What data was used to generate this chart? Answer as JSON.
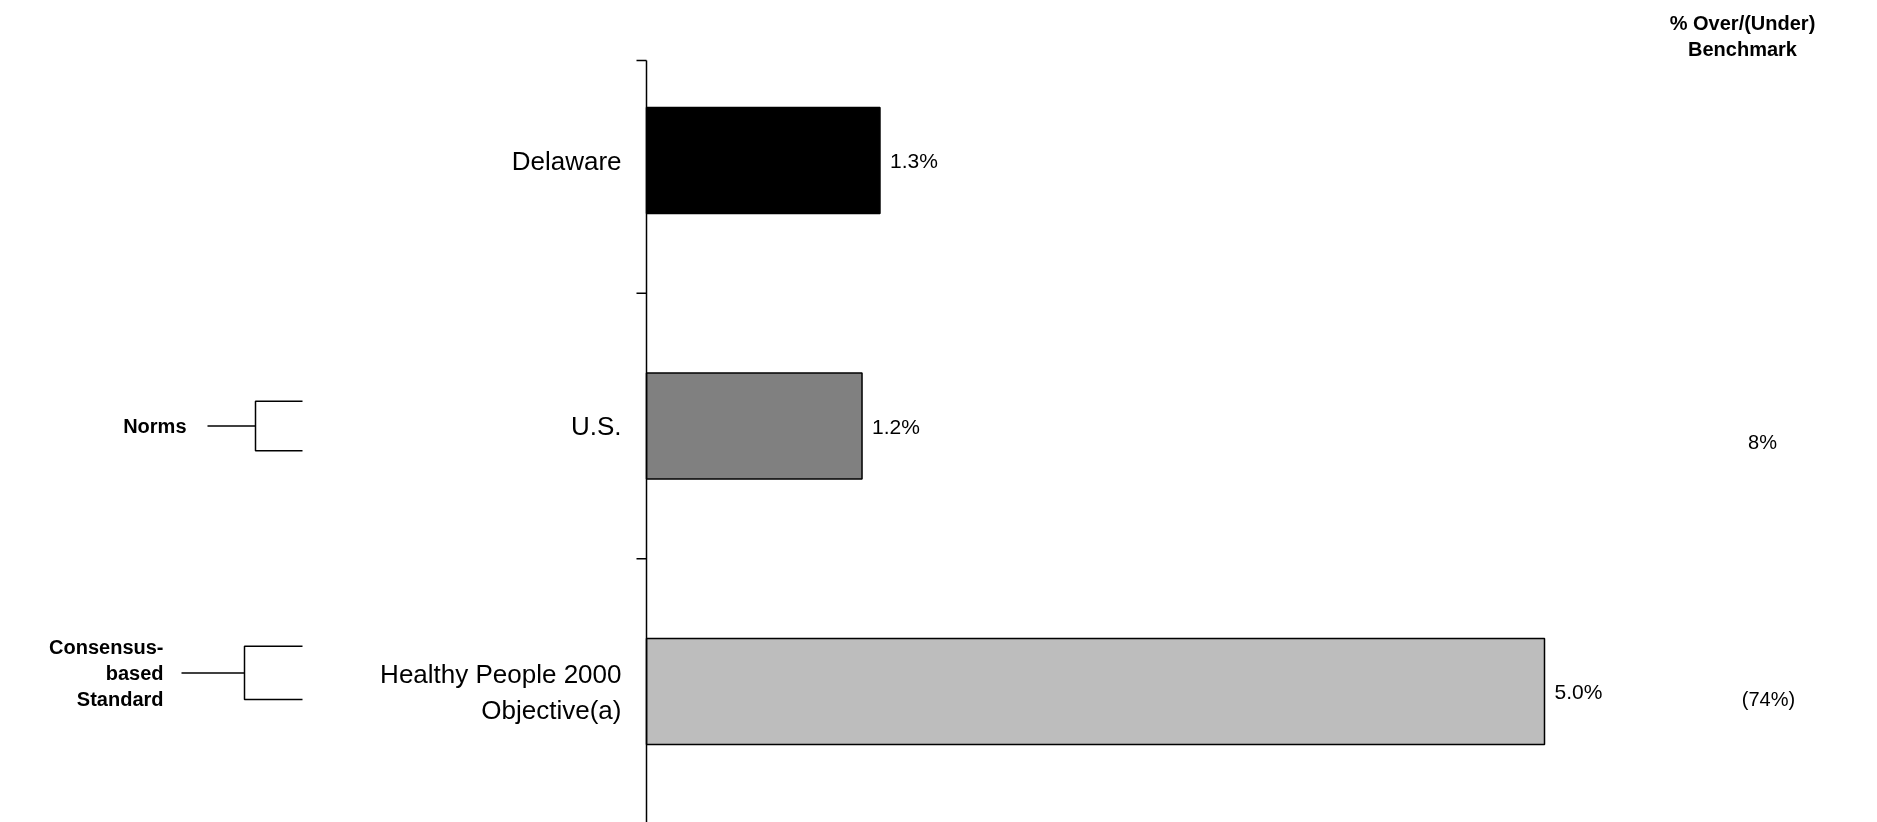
{
  "chart_data": {
    "type": "bar",
    "orientation": "horizontal",
    "categories": [
      "Delaware",
      "U.S.",
      "Healthy People 2000\nObjective(a)"
    ],
    "values": [
      1.3,
      1.2,
      5.0
    ],
    "colors": [
      "#000000",
      "#808080",
      "#bdbdbd"
    ],
    "data_labels": true,
    "value_labels": [
      "1.3%",
      "1.2%",
      "5.0%"
    ],
    "annotations": [
      "% Over/(Under)\nBenchmark",
      "8%",
      "(74%)",
      "Norms",
      "Consensus-\nbased\nStandard"
    ]
  }
}
